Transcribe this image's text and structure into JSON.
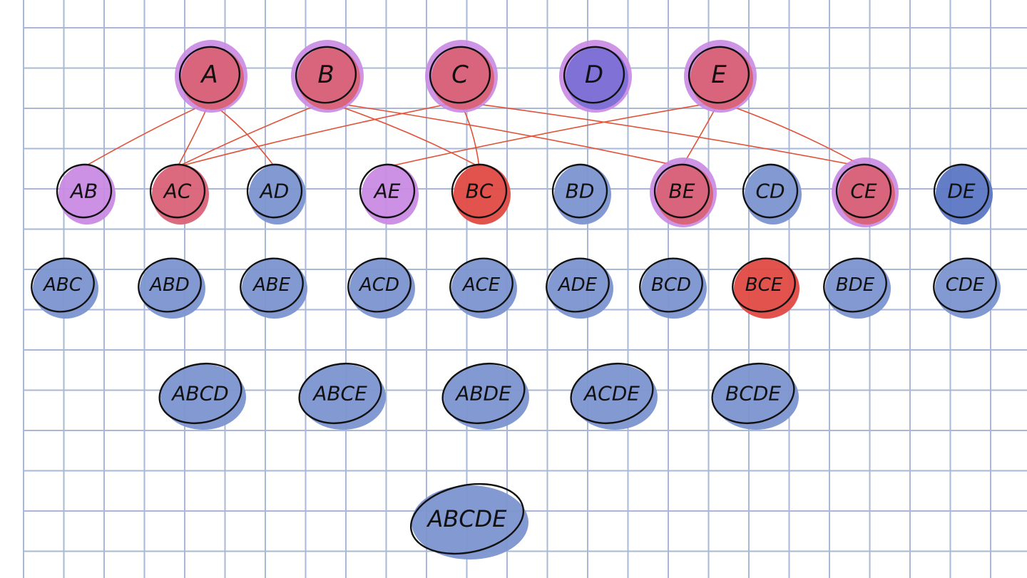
{
  "colors": {
    "grid": "#a9b8d6",
    "ink": "#111111",
    "edge": "#e0533a",
    "fill_blue": "#7c93cf",
    "fill_dark_blue": "#5b77c4",
    "fill_purple": "#c98ae3",
    "fill_violet": "#7b6fd6",
    "fill_red": "#d96277",
    "fill_bright_red": "#e04a45"
  },
  "rows": [
    [
      {
        "id": "A",
        "label": "A",
        "fill": "fill_red",
        "halo": "fill_purple"
      },
      {
        "id": "B",
        "label": "B",
        "fill": "fill_red",
        "halo": "fill_purple"
      },
      {
        "id": "C",
        "label": "C",
        "fill": "fill_red",
        "halo": "fill_purple"
      },
      {
        "id": "D",
        "label": "D",
        "fill": "fill_violet",
        "halo": "fill_purple"
      },
      {
        "id": "E",
        "label": "E",
        "fill": "fill_red",
        "halo": "fill_purple"
      }
    ],
    [
      {
        "id": "AB",
        "label": "AB",
        "fill": "fill_purple"
      },
      {
        "id": "AC",
        "label": "AC",
        "fill": "fill_red"
      },
      {
        "id": "AD",
        "label": "AD",
        "fill": "fill_blue"
      },
      {
        "id": "AE",
        "label": "AE",
        "fill": "fill_purple"
      },
      {
        "id": "BC",
        "label": "BC",
        "fill": "fill_bright_red"
      },
      {
        "id": "BD",
        "label": "BD",
        "fill": "fill_blue"
      },
      {
        "id": "BE",
        "label": "BE",
        "fill": "fill_red",
        "halo": "fill_purple"
      },
      {
        "id": "CD",
        "label": "CD",
        "fill": "fill_blue"
      },
      {
        "id": "CE",
        "label": "CE",
        "fill": "fill_red",
        "halo": "fill_purple"
      },
      {
        "id": "DE",
        "label": "DE",
        "fill": "fill_dark_blue"
      }
    ],
    [
      {
        "id": "ABC",
        "label": "ABC",
        "fill": "fill_blue"
      },
      {
        "id": "ABD",
        "label": "ABD",
        "fill": "fill_blue"
      },
      {
        "id": "ABE",
        "label": "ABE",
        "fill": "fill_blue"
      },
      {
        "id": "ACD",
        "label": "ACD",
        "fill": "fill_blue"
      },
      {
        "id": "ACE",
        "label": "ACE",
        "fill": "fill_blue"
      },
      {
        "id": "ADE",
        "label": "ADE",
        "fill": "fill_blue"
      },
      {
        "id": "BCD",
        "label": "BCD",
        "fill": "fill_blue"
      },
      {
        "id": "BCE",
        "label": "BCE",
        "fill": "fill_bright_red"
      },
      {
        "id": "BDE",
        "label": "BDE",
        "fill": "fill_blue"
      },
      {
        "id": "CDE",
        "label": "CDE",
        "fill": "fill_blue"
      }
    ],
    [
      {
        "id": "ABCD",
        "label": "ABCD",
        "fill": "fill_blue"
      },
      {
        "id": "ABCE",
        "label": "ABCE",
        "fill": "fill_blue"
      },
      {
        "id": "ABDE",
        "label": "ABDE",
        "fill": "fill_blue"
      },
      {
        "id": "ACDE",
        "label": "ACDE",
        "fill": "fill_blue"
      },
      {
        "id": "BCDE",
        "label": "BCDE",
        "fill": "fill_blue"
      }
    ],
    [
      {
        "id": "ABCDE",
        "label": "ABCDE",
        "fill": "fill_blue"
      }
    ]
  ],
  "edges": [
    [
      "A",
      "AB"
    ],
    [
      "A",
      "AC"
    ],
    [
      "A",
      "AD"
    ],
    [
      "B",
      "AC"
    ],
    [
      "B",
      "BC"
    ],
    [
      "B",
      "BE"
    ],
    [
      "C",
      "AC"
    ],
    [
      "C",
      "BC"
    ],
    [
      "C",
      "CE"
    ],
    [
      "E",
      "AE"
    ],
    [
      "E",
      "BE"
    ],
    [
      "E",
      "CE"
    ]
  ]
}
